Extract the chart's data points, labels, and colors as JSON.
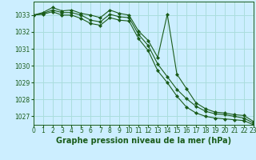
{
  "title": "Graphe pression niveau de la mer (hPa)",
  "bg_color": "#cceeff",
  "grid_color": "#aadddd",
  "line_color": "#1a5c1a",
  "xlim": [
    0,
    23
  ],
  "ylim": [
    1026.5,
    1033.8
  ],
  "yticks": [
    1027,
    1028,
    1029,
    1030,
    1031,
    1032,
    1033
  ],
  "xticks": [
    0,
    1,
    2,
    3,
    4,
    5,
    6,
    7,
    8,
    9,
    10,
    11,
    12,
    13,
    14,
    15,
    16,
    17,
    18,
    19,
    20,
    21,
    22,
    23
  ],
  "series1": [
    1033.0,
    1033.15,
    1033.45,
    1033.25,
    1033.3,
    1033.1,
    1033.0,
    1032.85,
    1033.3,
    1033.1,
    1033.0,
    1032.05,
    1031.5,
    1030.5,
    1033.05,
    1029.5,
    1028.65,
    1027.8,
    1027.45,
    1027.25,
    1027.2,
    1027.1,
    1027.05,
    1026.7
  ],
  "series2": [
    1033.0,
    1033.1,
    1033.3,
    1033.15,
    1033.15,
    1033.0,
    1032.7,
    1032.6,
    1033.05,
    1032.9,
    1032.85,
    1031.85,
    1031.2,
    1030.1,
    1029.35,
    1028.6,
    1028.05,
    1027.6,
    1027.3,
    1027.15,
    1027.1,
    1027.0,
    1026.9,
    1026.6
  ],
  "series3": [
    1033.0,
    1033.05,
    1033.2,
    1033.0,
    1033.0,
    1032.8,
    1032.5,
    1032.4,
    1032.85,
    1032.7,
    1032.65,
    1031.6,
    1030.9,
    1029.7,
    1029.0,
    1028.2,
    1027.55,
    1027.2,
    1027.0,
    1026.9,
    1026.85,
    1026.8,
    1026.75,
    1026.5
  ],
  "tick_fontsize": 5.5,
  "title_fontsize": 7,
  "marker": "D",
  "markersize": 2.0,
  "linewidth": 0.8
}
